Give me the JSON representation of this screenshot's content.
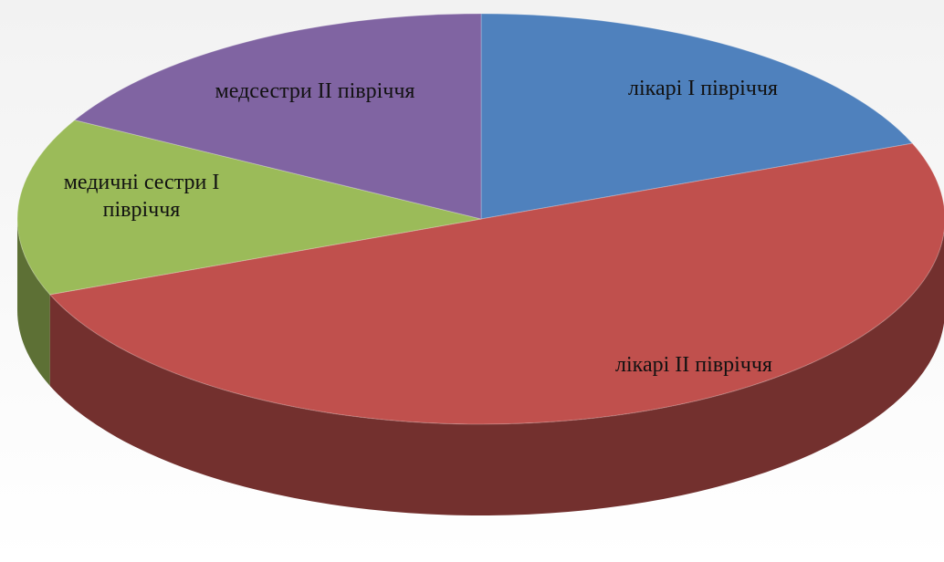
{
  "chart_data": {
    "type": "pie3d",
    "categories": [
      "лікарі I півріччя",
      "лікарі II півріччя",
      "медичні сестри I півріччя",
      "медсестри II півріччя"
    ],
    "values": [
      19,
      50,
      14,
      17
    ],
    "colors": [
      "#4f81bd",
      "#c0504d",
      "#9bbb59",
      "#8064a2"
    ]
  }
}
